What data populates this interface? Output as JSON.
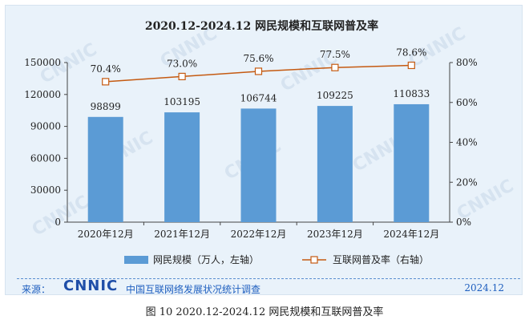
{
  "chart_data": {
    "type": "bar+line",
    "title": "2020.12-2024.12 网民规模和互联网普及率",
    "categories": [
      "2020年12月",
      "2021年12月",
      "2022年12月",
      "2023年12月",
      "2024年12月"
    ],
    "series": [
      {
        "name": "网民规模（万人，左轴）",
        "type": "bar",
        "axis": "left",
        "values": [
          98899,
          103195,
          106744,
          109225,
          110833
        ],
        "labels": [
          "98899",
          "103195",
          "106744",
          "109225",
          "110833"
        ]
      },
      {
        "name": "互联网普及率（右轴）",
        "type": "line",
        "axis": "right",
        "values": [
          70.4,
          73.0,
          75.6,
          77.5,
          78.6
        ],
        "labels": [
          "70.4%",
          "73.0%",
          "75.6%",
          "77.5%",
          "78.6%"
        ]
      }
    ],
    "left_axis": {
      "ylim": [
        0,
        150000
      ],
      "ticks": [
        "0",
        "30000",
        "60000",
        "90000",
        "120000",
        "150000"
      ]
    },
    "right_axis": {
      "ylim": [
        0,
        80
      ],
      "ticks": [
        "0%",
        "20%",
        "40%",
        "60%",
        "80%"
      ]
    },
    "legend_position": "bottom"
  },
  "colors": {
    "bar": "#5b9bd5",
    "line": "#c55a11",
    "marker_fill": "#ffffff",
    "text": "#222222",
    "source": "#1f5fbf"
  },
  "watermark_text": "CNNIC",
  "footer": {
    "source_label": "来源：",
    "logo_text": "CNNIC",
    "source_text": "中国互联网络发展状况统计调查",
    "date": "2024.12"
  },
  "caption": "图  10   2020.12-2024.12 网民规模和互联网普及率"
}
